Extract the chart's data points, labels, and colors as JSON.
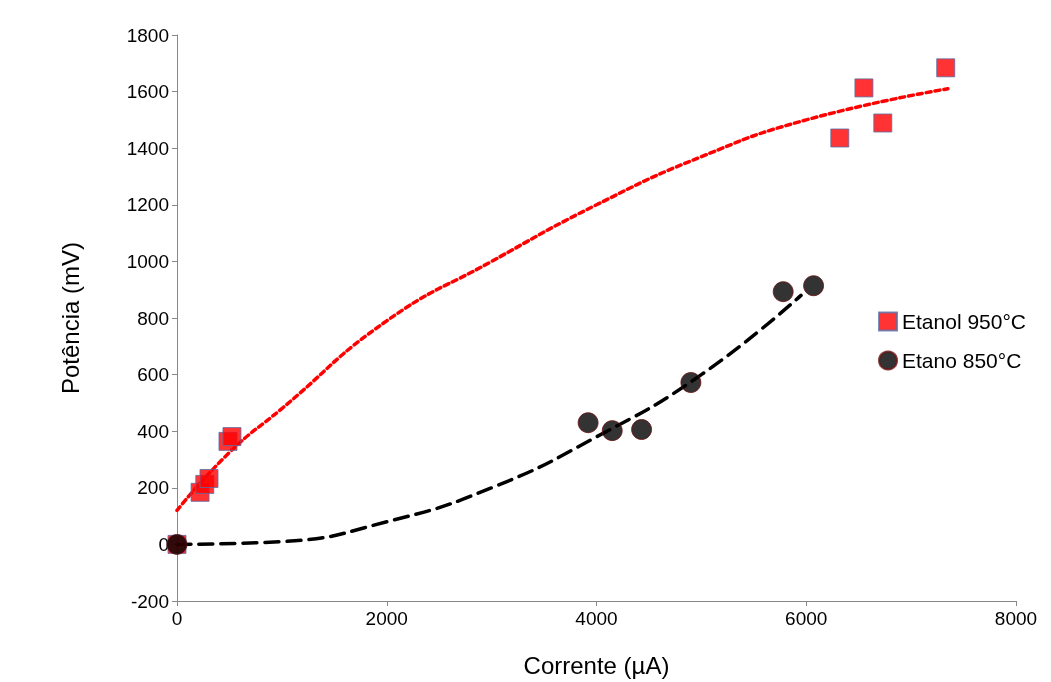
{
  "chart_data": {
    "type": "scatter",
    "xlabel": "Corrente (µA)",
    "ylabel": "Potência (mV)",
    "xlim": [
      0,
      8000
    ],
    "xticks": [
      0,
      2000,
      4000,
      6000,
      8000
    ],
    "ylim": [
      -200,
      1800
    ],
    "yticks": [
      -200,
      0,
      200,
      400,
      600,
      800,
      1000,
      1200,
      1400,
      1600,
      1800
    ],
    "grid": false,
    "legend": "right",
    "series": [
      {
        "name": "Etanol 950°C",
        "color": "#ff0000",
        "marker": "square",
        "x": [
          0,
          220,
          265,
          305,
          486,
          524,
          6320,
          6550,
          6730,
          7330
        ],
        "values": [
          0,
          184,
          212,
          233,
          364,
          381,
          1436,
          1613,
          1489,
          1684
        ]
      },
      {
        "name": "Etano 850°C",
        "color": "#000000",
        "marker": "circle",
        "x": [
          0,
          3920,
          4150,
          4430,
          4900,
          5780,
          6070
        ],
        "values": [
          0,
          430,
          402,
          406,
          572,
          893,
          914
        ]
      },
      {
        "type": "line",
        "color": "#ff0000",
        "marker": "none",
        "line_style": "dotted",
        "x": [
          0,
          500,
          1000,
          2000,
          3000,
          4000,
          5000,
          6000,
          7350
        ],
        "values": [
          120,
          325,
          480,
          790,
          1000,
          1200,
          1370,
          1500,
          1610
        ]
      },
      {
        "type": "line",
        "color": "#000000",
        "marker": "none",
        "line_style": "dashed",
        "x": [
          0,
          1000,
          2000,
          3000,
          4000,
          5000,
          5950
        ],
        "values": [
          0,
          10,
          80,
          200,
          380,
          600,
          880
        ]
      }
    ]
  }
}
